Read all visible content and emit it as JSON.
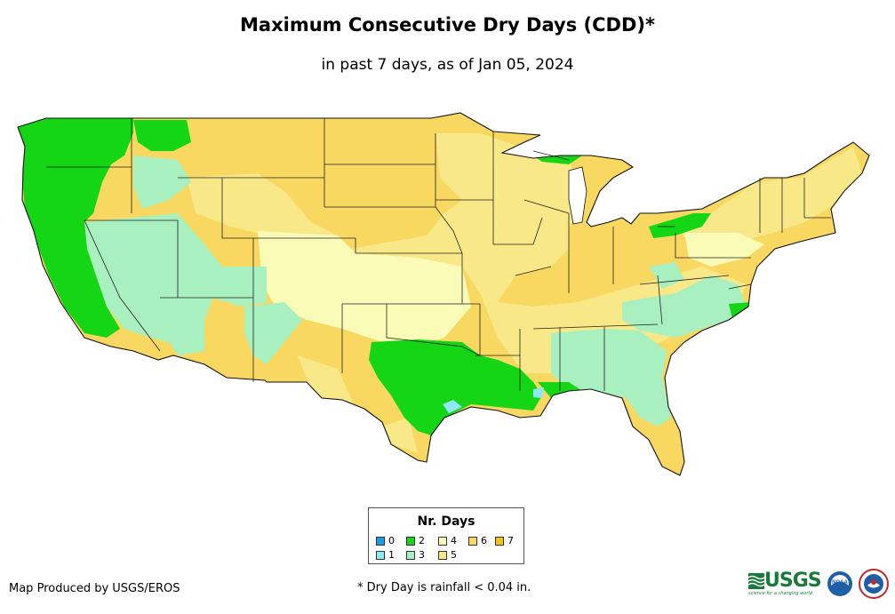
{
  "title": "Maximum Consecutive Dry Days (CDD)*",
  "subtitle": "in past 7 days, as of Jan 05, 2024",
  "legend": {
    "title": "Nr. Days",
    "items": [
      {
        "label": "0",
        "color": "#1a9be0"
      },
      {
        "label": "1",
        "color": "#8ee8f5"
      },
      {
        "label": "2",
        "color": "#14d614"
      },
      {
        "label": "3",
        "color": "#a8f0c0"
      },
      {
        "label": "4",
        "color": "#fbfbb8"
      },
      {
        "label": "5",
        "color": "#f8e888"
      },
      {
        "label": "6",
        "color": "#f8d860"
      },
      {
        "label": "7",
        "color": "#f8c010"
      }
    ]
  },
  "credit": "Map Produced by USGS/EROS",
  "footnote": "* Dry Day is rainfall < 0.04 in.",
  "logos": {
    "usgs_word": "USGS",
    "usgs_tagline": "science for a changing world",
    "noaa_word": "NOAA"
  }
}
